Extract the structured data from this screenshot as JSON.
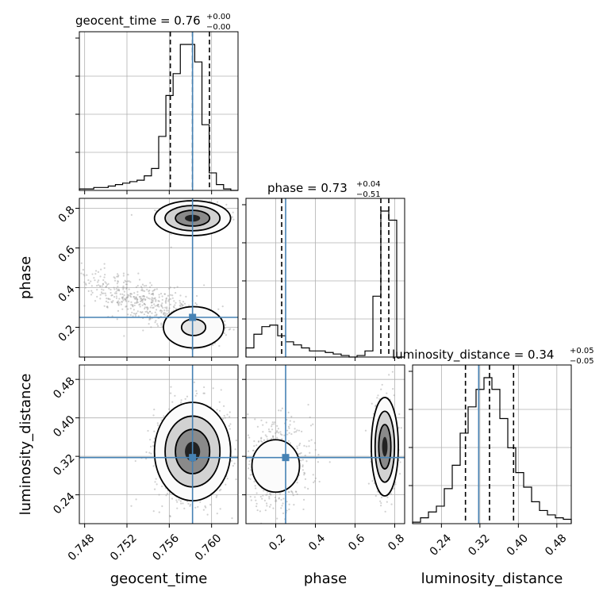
{
  "chart_data": {
    "type": "corner",
    "parameters": [
      "geocent_time",
      "phase",
      "luminosity_distance"
    ],
    "truths": {
      "geocent_time": 0.7582,
      "phase": 0.25,
      "luminosity_distance": 0.3175
    },
    "truth_color": "#4682b4",
    "ranges": {
      "geocent_time": [
        0.7475,
        0.7625
      ],
      "phase": [
        0.05,
        0.85
      ],
      "luminosity_distance": [
        0.18,
        0.51
      ]
    },
    "ticks": {
      "geocent_time": [
        0.748,
        0.752,
        0.756,
        0.76
      ],
      "phase": [
        0.2,
        0.4,
        0.6,
        0.8
      ],
      "luminosity_distance": [
        0.24,
        0.32,
        0.4,
        0.48
      ]
    },
    "tick_labels": {
      "geocent_time": [
        "0.748",
        "0.752",
        "0.756",
        "0.760"
      ],
      "phase": [
        "0.2",
        "0.4",
        "0.6",
        "0.8"
      ],
      "luminosity_distance": [
        "0.24",
        "0.32",
        "0.40",
        "0.48"
      ]
    },
    "titles": {
      "geocent_time": {
        "label": "geocent_time = 0.76",
        "plus": "+0.00",
        "minus": "−0.00"
      },
      "phase": {
        "label": "phase = 0.73",
        "plus": "+0.04",
        "minus": "−0.51"
      },
      "luminosity_distance": {
        "label": "luminosity_distance = 0.34",
        "plus": "+0.05",
        "minus": "−0.05"
      }
    },
    "quantiles": {
      "geocent_time": [
        0.7561,
        0.7582,
        0.7598
      ],
      "phase": [
        0.23,
        0.73,
        0.77
      ],
      "luminosity_distance": [
        0.29,
        0.34,
        0.39
      ]
    },
    "histograms": {
      "geocent_time": [
        1,
        1,
        2,
        2,
        3,
        4,
        5,
        6,
        7,
        10,
        15,
        37,
        65,
        80,
        100,
        100,
        88,
        45,
        12,
        4,
        1,
        0
      ],
      "phase": [
        6,
        15,
        20,
        21,
        14,
        10,
        8,
        6,
        4,
        4,
        3,
        2,
        1,
        0,
        1,
        4,
        40,
        96,
        90,
        0
      ],
      "luminosity_distance": [
        1,
        4,
        8,
        12,
        24,
        40,
        62,
        80,
        92,
        100,
        92,
        72,
        52,
        35,
        25,
        15,
        9,
        6,
        4,
        3
      ]
    },
    "grid": true
  },
  "axis_labels": {
    "geocent_time": "geocent_time",
    "phase": "phase",
    "luminosity_distance": "luminosity_distance"
  }
}
